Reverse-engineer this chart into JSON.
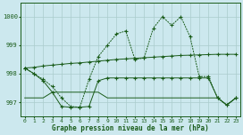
{
  "xlabel": "Graphe pression niveau de la mer (hPa)",
  "background_color": "#cce8ee",
  "grid_color": "#aacccc",
  "line_color": "#1a5c1a",
  "x": [
    0,
    1,
    2,
    3,
    4,
    5,
    6,
    7,
    8,
    9,
    10,
    11,
    12,
    13,
    14,
    15,
    16,
    17,
    18,
    19,
    20,
    21,
    22,
    23
  ],
  "line_wave": [
    998.2,
    998.0,
    997.8,
    997.55,
    997.15,
    996.85,
    996.82,
    997.8,
    998.6,
    999.0,
    999.4,
    999.5,
    998.5,
    998.55,
    999.6,
    1000.0,
    999.7,
    1000.0,
    999.3,
    997.9,
    997.9,
    997.15,
    996.9,
    997.15
  ],
  "line_slope": [
    998.2,
    998.22,
    998.27,
    998.3,
    998.33,
    998.36,
    998.38,
    998.41,
    998.44,
    998.47,
    998.5,
    998.52,
    998.54,
    998.56,
    998.58,
    998.6,
    998.62,
    998.64,
    998.65,
    998.66,
    998.67,
    998.68,
    998.68,
    998.68
  ],
  "line_dip": [
    998.2,
    998.0,
    997.75,
    997.35,
    996.85,
    996.82,
    996.82,
    996.85,
    997.75,
    997.85,
    997.85,
    997.85,
    997.85,
    997.85,
    997.85,
    997.85,
    997.85,
    997.85,
    997.85,
    997.85,
    997.85,
    997.15,
    996.9,
    997.15
  ],
  "line_flat": [
    997.15,
    997.15,
    997.15,
    997.35,
    997.35,
    997.35,
    997.35,
    997.35,
    997.35,
    997.15,
    997.15,
    997.15,
    997.15,
    997.15,
    997.15,
    997.15,
    997.15,
    997.15,
    997.15,
    997.15,
    997.15,
    997.15,
    996.9,
    997.15
  ],
  "ylim": [
    996.5,
    1000.5
  ],
  "yticks": [
    997,
    998,
    999,
    1000
  ],
  "xlim": [
    -0.5,
    23.5
  ]
}
